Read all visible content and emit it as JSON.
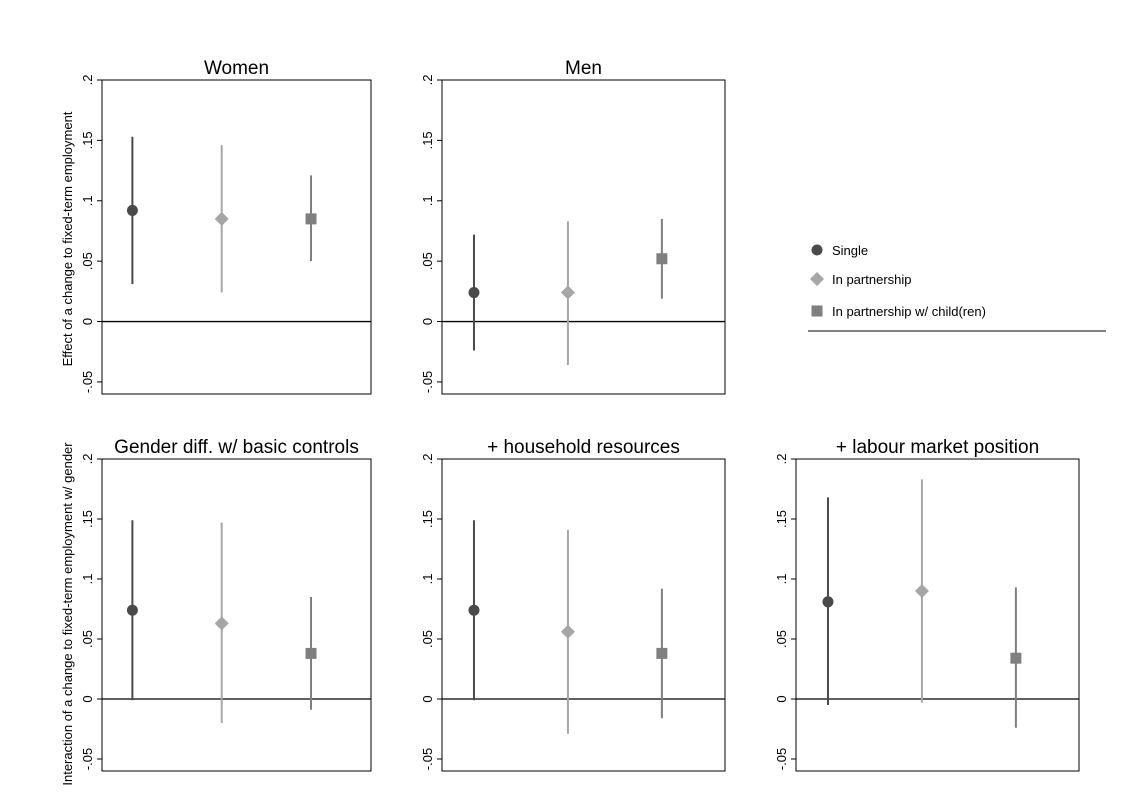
{
  "figure": {
    "ylabel_top": "Effect of a change to fixed-term employment",
    "ylabel_bottom": "Interaction of a change to fixed-term employment w/ gender"
  },
  "legend": {
    "placement": "right of top row",
    "items": [
      {
        "label": "Single",
        "marker": "circle",
        "color": "#4a4a4a"
      },
      {
        "label": "In partnership",
        "marker": "diamond",
        "color": "#a6a6a6"
      },
      {
        "label": "In partnership w/ child(ren)",
        "marker": "square",
        "color": "#7f7f7f"
      }
    ]
  },
  "chart_data": [
    {
      "type": "scatter",
      "title": "Women",
      "ylim": [
        -0.06,
        0.2
      ],
      "yticks": [
        {
          "v": -0.05,
          "label": "-.05"
        },
        {
          "v": 0,
          "label": "0"
        },
        {
          "v": 0.05,
          "label": ".05"
        },
        {
          "v": 0.1,
          "label": ".1"
        },
        {
          "v": 0.15,
          "label": ".15"
        },
        {
          "v": 0.2,
          "label": ".2"
        }
      ],
      "reference_line": 0,
      "series": [
        {
          "name": "Single",
          "estimate": 0.092,
          "ci": [
            0.031,
            0.153
          ]
        },
        {
          "name": "In partnership",
          "estimate": 0.085,
          "ci": [
            0.024,
            0.146
          ]
        },
        {
          "name": "In partnership w/ child(ren)",
          "estimate": 0.085,
          "ci": [
            0.05,
            0.121
          ]
        }
      ]
    },
    {
      "type": "scatter",
      "title": "Men",
      "ylim": [
        -0.06,
        0.2
      ],
      "yticks": [
        {
          "v": -0.05,
          "label": "-.05"
        },
        {
          "v": 0,
          "label": "0"
        },
        {
          "v": 0.05,
          "label": ".05"
        },
        {
          "v": 0.1,
          "label": ".1"
        },
        {
          "v": 0.15,
          "label": ".15"
        },
        {
          "v": 0.2,
          "label": ".2"
        }
      ],
      "reference_line": 0,
      "series": [
        {
          "name": "Single",
          "estimate": 0.024,
          "ci": [
            -0.024,
            0.072
          ]
        },
        {
          "name": "In partnership",
          "estimate": 0.024,
          "ci": [
            -0.036,
            0.083
          ]
        },
        {
          "name": "In partnership w/ child(ren)",
          "estimate": 0.052,
          "ci": [
            0.019,
            0.085
          ]
        }
      ]
    },
    {
      "type": "scatter",
      "title": "Gender diff. w/ basic controls",
      "ylim": [
        -0.06,
        0.2
      ],
      "yticks": [
        {
          "v": -0.05,
          "label": "-.05"
        },
        {
          "v": 0,
          "label": "0"
        },
        {
          "v": 0.05,
          "label": ".05"
        },
        {
          "v": 0.1,
          "label": ".1"
        },
        {
          "v": 0.15,
          "label": ".15"
        },
        {
          "v": 0.2,
          "label": ".2"
        }
      ],
      "reference_line": 0,
      "series": [
        {
          "name": "Single",
          "estimate": 0.074,
          "ci": [
            -0.001,
            0.149
          ]
        },
        {
          "name": "In partnership",
          "estimate": 0.063,
          "ci": [
            -0.02,
            0.147
          ]
        },
        {
          "name": "In partnership w/ child(ren)",
          "estimate": 0.038,
          "ci": [
            -0.009,
            0.085
          ]
        }
      ]
    },
    {
      "type": "scatter",
      "title": "+ household resources",
      "ylim": [
        -0.06,
        0.2
      ],
      "yticks": [
        {
          "v": -0.05,
          "label": "-.05"
        },
        {
          "v": 0,
          "label": "0"
        },
        {
          "v": 0.05,
          "label": ".05"
        },
        {
          "v": 0.1,
          "label": ".1"
        },
        {
          "v": 0.15,
          "label": ".15"
        },
        {
          "v": 0.2,
          "label": ".2"
        }
      ],
      "reference_line": 0,
      "series": [
        {
          "name": "Single",
          "estimate": 0.074,
          "ci": [
            -0.001,
            0.149
          ]
        },
        {
          "name": "In partnership",
          "estimate": 0.056,
          "ci": [
            -0.029,
            0.141
          ]
        },
        {
          "name": "In partnership w/ child(ren)",
          "estimate": 0.038,
          "ci": [
            -0.016,
            0.092
          ]
        }
      ]
    },
    {
      "type": "scatter",
      "title": "+ labour market position",
      "ylim": [
        -0.06,
        0.2
      ],
      "yticks": [
        {
          "v": -0.05,
          "label": "-.05"
        },
        {
          "v": 0,
          "label": "0"
        },
        {
          "v": 0.05,
          "label": ".05"
        },
        {
          "v": 0.1,
          "label": ".1"
        },
        {
          "v": 0.15,
          "label": ".15"
        },
        {
          "v": 0.2,
          "label": ".2"
        }
      ],
      "reference_line": 0,
      "series": [
        {
          "name": "Single",
          "estimate": 0.081,
          "ci": [
            -0.005,
            0.168
          ]
        },
        {
          "name": "In partnership",
          "estimate": 0.09,
          "ci": [
            -0.003,
            0.183
          ]
        },
        {
          "name": "In partnership w/ child(ren)",
          "estimate": 0.034,
          "ci": [
            -0.024,
            0.093
          ]
        }
      ]
    }
  ]
}
